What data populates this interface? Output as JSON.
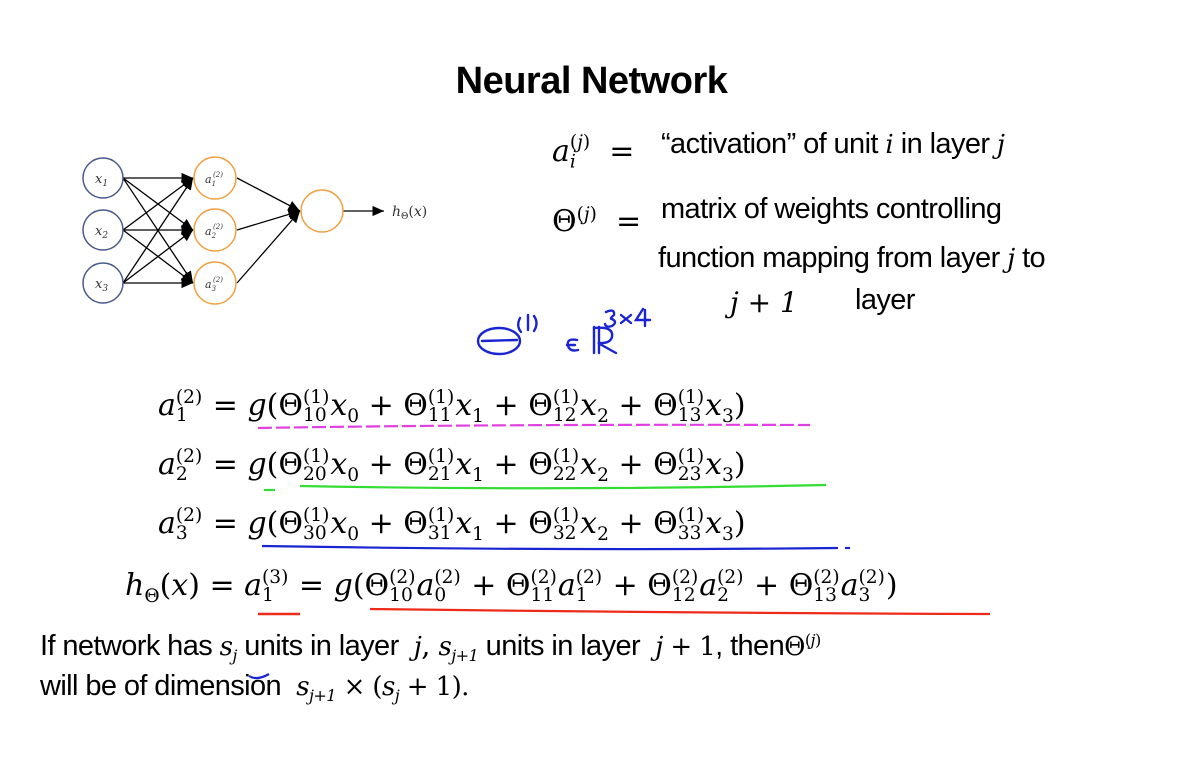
{
  "title": "Neural Network",
  "definitions": {
    "activation_text": "“activation” of unit",
    "activation_in_layer": "in layer",
    "theta_line1": "matrix of weights controlling",
    "theta_line2": "function mapping from layer",
    "theta_to": "to",
    "theta_line3_math": "j + 1",
    "theta_line3_text": "layer"
  },
  "diagram": {
    "inputs": [
      "x1",
      "x2",
      "x3"
    ],
    "hidden": [
      "a1(2)",
      "a2(2)",
      "a3(2)"
    ],
    "output_label": "hΘ(x)"
  },
  "annotation": "Θ(1) ∈ ℝ3×4",
  "bottom": {
    "line1_a": "If network has",
    "line1_b": "units in layer",
    "line1_c": "units in layer",
    "line1_d": ", then",
    "line2_a": "will be of dimension"
  },
  "colors": {
    "pink": "#e040e0",
    "green": "#33dd33",
    "blue": "#1a24d0",
    "red": "#ee2b1a",
    "input_node": "#4a5a8a",
    "hidden_node": "#f0a040"
  }
}
